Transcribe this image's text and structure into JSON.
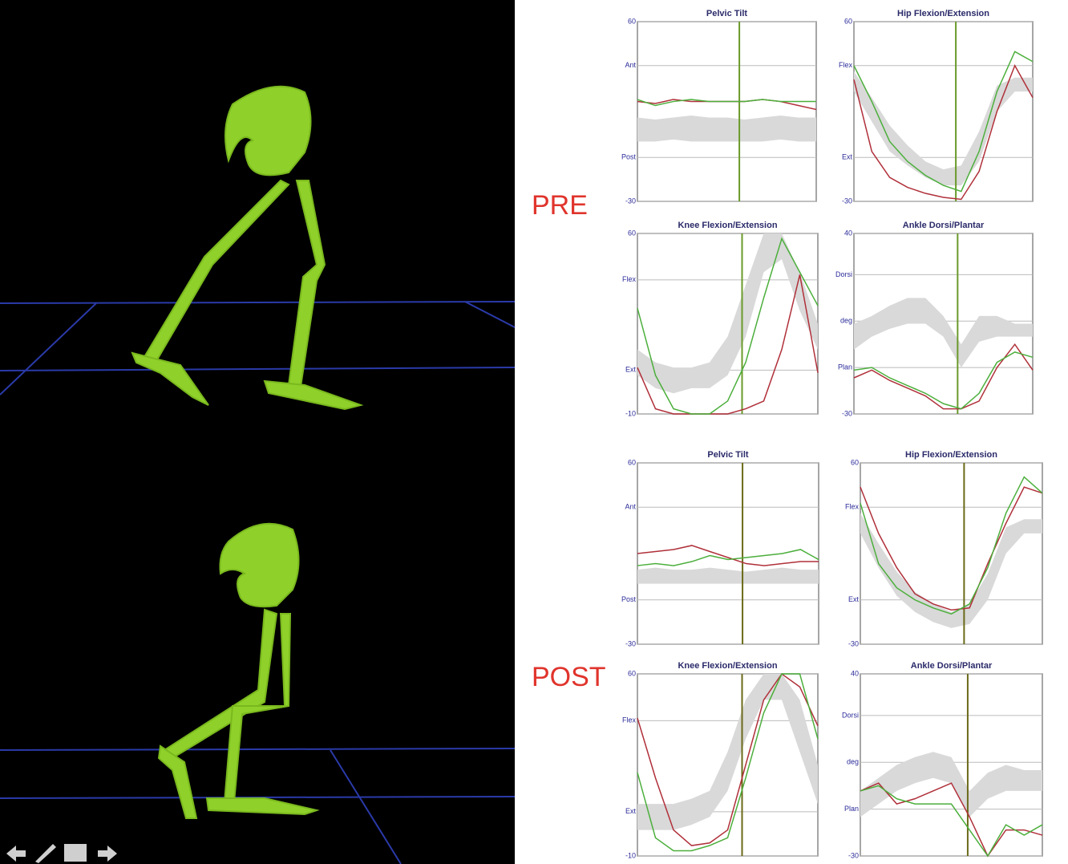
{
  "labels": [
    "PRE",
    "POST"
  ],
  "chart_data": [
    {
      "type": "line",
      "title": "Pelvic Tilt",
      "x": [
        0,
        10,
        20,
        30,
        40,
        50,
        60,
        70,
        80,
        90,
        100
      ],
      "xlim": [
        0,
        100
      ],
      "ylim": [
        -30,
        60
      ],
      "yticks": [
        -30,
        {
          "value": -8,
          "label": "Post"
        },
        {
          "value": 38,
          "label": "Ant"
        },
        60
      ],
      "series": [
        {
          "color": "#b0303a",
          "values": [
            20,
            19,
            21,
            20,
            20,
            20,
            20,
            21,
            20,
            18,
            16
          ]
        },
        {
          "color": "#4caf3c",
          "values": [
            21,
            18,
            20,
            21,
            20,
            20,
            20,
            21,
            20,
            20,
            20
          ]
        }
      ],
      "band": {
        "color": "#d9d9d9",
        "lower": [
          0,
          0,
          1,
          0,
          0,
          0,
          0,
          0,
          1,
          0,
          0
        ],
        "upper": [
          12,
          11,
          12,
          13,
          12,
          12,
          11,
          12,
          13,
          12,
          12
        ]
      },
      "toe_off": 57,
      "toe_off_color": "#6a9a2a"
    },
    {
      "type": "line",
      "title": "Hip Flexion/Extension",
      "x": [
        0,
        10,
        20,
        30,
        40,
        50,
        60,
        70,
        80,
        90,
        100
      ],
      "xlim": [
        0,
        100
      ],
      "ylim": [
        -30,
        60
      ],
      "yticks": [
        -30,
        {
          "value": -8,
          "label": "Ext"
        },
        {
          "value": 38,
          "label": "Flex"
        },
        60
      ],
      "series": [
        {
          "color": "#b0303a",
          "values": [
            31,
            -5,
            -18,
            -23,
            -26,
            -28,
            -29,
            -15,
            15,
            38,
            22
          ]
        },
        {
          "color": "#4caf3c",
          "values": [
            38,
            20,
            0,
            -10,
            -17,
            -22,
            -25,
            -5,
            25,
            45,
            40
          ]
        }
      ],
      "band": {
        "color": "#d9d9d9",
        "lower": [
          25,
          10,
          -5,
          -12,
          -18,
          -22,
          -22,
          -10,
          15,
          25,
          25
        ],
        "upper": [
          35,
          22,
          8,
          -2,
          -10,
          -14,
          -12,
          5,
          28,
          32,
          32
        ]
      },
      "toe_off": 57,
      "toe_off_color": "#6a9a2a"
    },
    {
      "type": "line",
      "title": "Knee Flexion/Extension",
      "x": [
        0,
        10,
        20,
        30,
        40,
        50,
        60,
        70,
        80,
        90,
        100
      ],
      "xlim": [
        0,
        100
      ],
      "ylim": [
        -10,
        60
      ],
      "yticks": [
        -10,
        {
          "value": 7,
          "label": "Ext"
        },
        {
          "value": 42,
          "label": "Flex"
        },
        60
      ],
      "series": [
        {
          "color": "#b0303a",
          "values": [
            8,
            -8,
            -10,
            -10,
            -10,
            -10,
            -8,
            -5,
            15,
            44,
            6
          ]
        },
        {
          "color": "#4caf3c",
          "values": [
            31,
            5,
            -8,
            -10,
            -10,
            -5,
            10,
            35,
            58,
            45,
            32
          ]
        }
      ],
      "band": {
        "color": "#d9d9d9",
        "lower": [
          5,
          0,
          -2,
          0,
          0,
          5,
          20,
          45,
          50,
          30,
          15
        ],
        "upper": [
          15,
          10,
          8,
          8,
          10,
          20,
          40,
          60,
          60,
          45,
          25
        ]
      },
      "toe_off": 58,
      "toe_off_color": "#6a9a2a"
    },
    {
      "type": "line",
      "title": "Ankle Dorsi/Plantar",
      "x": [
        0,
        10,
        20,
        30,
        40,
        50,
        60,
        70,
        80,
        90,
        100
      ],
      "xlim": [
        0,
        100
      ],
      "ylim": [
        -30,
        40
      ],
      "yticks": [
        -30,
        {
          "value": -12,
          "label": "Plan"
        },
        {
          "value": 6,
          "label": "deg"
        },
        {
          "value": 24,
          "label": "Dorsi"
        },
        40
      ],
      "series": [
        {
          "color": "#b0303a",
          "values": [
            -16,
            -13,
            -17,
            -20,
            -23,
            -28,
            -28,
            -25,
            -12,
            -3,
            -13
          ]
        },
        {
          "color": "#4caf3c",
          "values": [
            -13,
            -12,
            -16,
            -19,
            -22,
            -26,
            -28,
            -22,
            -10,
            -6,
            -8
          ]
        }
      ],
      "band": {
        "color": "#d9d9d9",
        "lower": [
          -5,
          0,
          3,
          5,
          5,
          0,
          -12,
          -2,
          0,
          0,
          0
        ],
        "upper": [
          5,
          8,
          12,
          15,
          15,
          8,
          -3,
          8,
          8,
          5,
          5
        ]
      },
      "toe_off": 58,
      "toe_off_color": "#6a9a2a"
    },
    {
      "type": "line",
      "title": "Pelvic Tilt",
      "x": [
        0,
        10,
        20,
        30,
        40,
        50,
        60,
        70,
        80,
        90,
        100
      ],
      "xlim": [
        0,
        100
      ],
      "ylim": [
        -30,
        60
      ],
      "yticks": [
        -30,
        {
          "value": -8,
          "label": "Post"
        },
        {
          "value": 38,
          "label": "Ant"
        },
        60
      ],
      "series": [
        {
          "color": "#b0303a",
          "values": [
            15,
            16,
            17,
            19,
            16,
            13,
            10,
            9,
            10,
            11,
            11
          ]
        },
        {
          "color": "#4caf3c",
          "values": [
            9,
            10,
            9,
            11,
            14,
            12,
            13,
            14,
            15,
            17,
            12
          ]
        }
      ],
      "band": {
        "color": "#d9d9d9",
        "lower": [
          0,
          0,
          0,
          0,
          0,
          0,
          0,
          0,
          0,
          0,
          0
        ],
        "upper": [
          7,
          8,
          7,
          7,
          8,
          7,
          6,
          7,
          8,
          7,
          7
        ]
      },
      "toe_off": 58,
      "toe_off_color": "#6a6a1a"
    },
    {
      "type": "line",
      "title": "Hip Flexion/Extension",
      "x": [
        0,
        10,
        20,
        30,
        40,
        50,
        60,
        70,
        80,
        90,
        100
      ],
      "xlim": [
        0,
        100
      ],
      "ylim": [
        -30,
        60
      ],
      "yticks": [
        -30,
        {
          "value": -8,
          "label": "Ext"
        },
        {
          "value": 38,
          "label": "Flex"
        },
        60
      ],
      "series": [
        {
          "color": "#b0303a",
          "values": [
            48,
            25,
            8,
            -5,
            -10,
            -13,
            -12,
            10,
            30,
            48,
            45
          ]
        },
        {
          "color": "#4caf3c",
          "values": [
            40,
            10,
            -2,
            -8,
            -12,
            -15,
            -10,
            8,
            35,
            53,
            45
          ]
        }
      ],
      "band": {
        "color": "#d9d9d9",
        "lower": [
          25,
          8,
          -6,
          -14,
          -19,
          -22,
          -20,
          -8,
          15,
          25,
          25
        ],
        "upper": [
          35,
          20,
          6,
          -4,
          -10,
          -14,
          -10,
          5,
          28,
          32,
          32
        ]
      },
      "toe_off": 57,
      "toe_off_color": "#6a6a1a"
    },
    {
      "type": "line",
      "title": "Knee Flexion/Extension",
      "x": [
        0,
        10,
        20,
        30,
        40,
        50,
        60,
        70,
        80,
        90,
        100
      ],
      "xlim": [
        0,
        100
      ],
      "ylim": [
        -10,
        60
      ],
      "yticks": [
        -10,
        {
          "value": 7,
          "label": "Ext"
        },
        {
          "value": 42,
          "label": "Flex"
        },
        60
      ],
      "series": [
        {
          "color": "#b0303a",
          "values": [
            43,
            20,
            0,
            -6,
            -5,
            0,
            25,
            50,
            60,
            55,
            40
          ]
        },
        {
          "color": "#4caf3c",
          "values": [
            22,
            -3,
            -8,
            -8,
            -6,
            -3,
            20,
            45,
            60,
            60,
            35
          ]
        }
      ],
      "band": {
        "color": "#d9d9d9",
        "lower": [
          0,
          0,
          0,
          2,
          5,
          15,
          35,
          50,
          50,
          30,
          10
        ],
        "upper": [
          10,
          10,
          10,
          12,
          15,
          30,
          50,
          60,
          60,
          50,
          25
        ]
      },
      "toe_off": 58,
      "toe_off_color": "#6a6a1a"
    },
    {
      "type": "line",
      "title": "Ankle Dorsi/Plantar",
      "x": [
        0,
        10,
        20,
        30,
        40,
        50,
        60,
        70,
        80,
        90,
        100
      ],
      "xlim": [
        0,
        100
      ],
      "ylim": [
        -30,
        40
      ],
      "yticks": [
        -30,
        {
          "value": -12,
          "label": "Plan"
        },
        {
          "value": 6,
          "label": "deg"
        },
        {
          "value": 24,
          "label": "Dorsi"
        },
        40
      ],
      "series": [
        {
          "color": "#b0303a",
          "values": [
            -5,
            -2,
            -10,
            -8,
            -5,
            -2,
            -15,
            -30,
            -20,
            -20,
            -22
          ]
        },
        {
          "color": "#4caf3c",
          "values": [
            -5,
            -3,
            -8,
            -10,
            -10,
            -10,
            -20,
            -30,
            -18,
            -22,
            -18
          ]
        }
      ],
      "band": {
        "color": "#d9d9d9",
        "lower": [
          -15,
          -10,
          -5,
          -2,
          0,
          -2,
          -15,
          -8,
          -5,
          -5,
          -5
        ],
        "upper": [
          -5,
          0,
          5,
          8,
          10,
          8,
          -5,
          2,
          5,
          3,
          3
        ]
      },
      "toe_off": 59,
      "toe_off_color": "#6a6a1a"
    }
  ]
}
